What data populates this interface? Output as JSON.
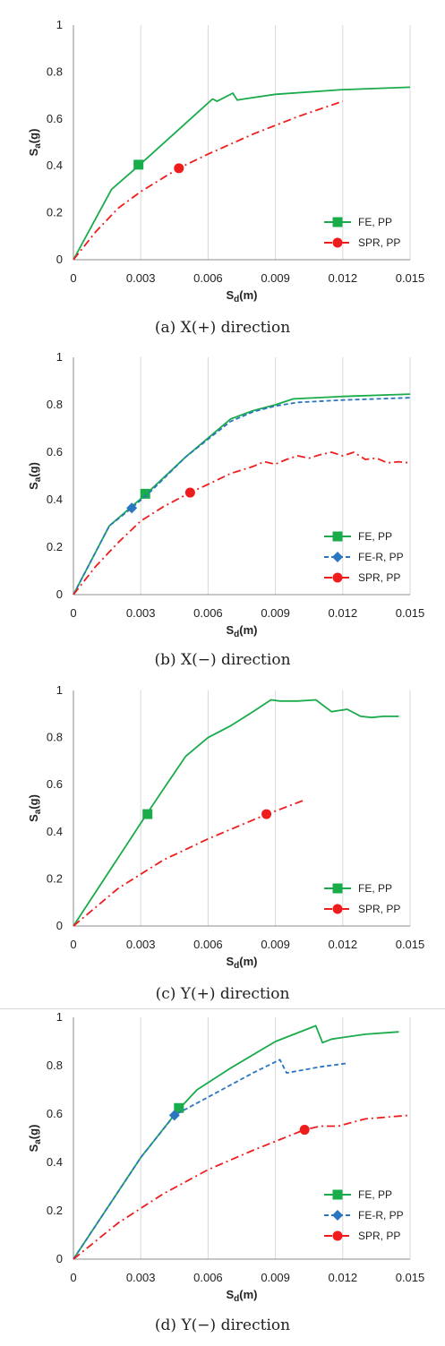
{
  "colors": {
    "fe": "#1aab4b",
    "fer": "#2a76c1",
    "spr": "#ee1c1c",
    "grid": "#d9d9d9",
    "axis": "#8c8c8c"
  },
  "chart_data": [
    {
      "type": "line",
      "caption": "(a) X(+) direction",
      "xlabel": "S_d(m)",
      "ylabel": "S_a(g)",
      "xlim": [
        0,
        0.015
      ],
      "ylim": [
        0,
        1
      ],
      "xticks": [
        "0",
        "0.003",
        "0.006",
        "0.009",
        "0.012",
        "0.015"
      ],
      "yticks": [
        "0",
        "0.2",
        "0.4",
        "0.6",
        "0.8",
        "1"
      ],
      "grid": "vertical",
      "legend": "bottom-right",
      "series": [
        {
          "name": "FE, PP",
          "style": "solid",
          "marker": "square",
          "color": "#1aab4b",
          "x": [
            0,
            0.0017,
            0.0029,
            0.0062,
            0.0064,
            0.0071,
            0.0073,
            0.0076,
            0.009,
            0.012,
            0.015
          ],
          "y": [
            0,
            0.3,
            0.4,
            0.685,
            0.675,
            0.71,
            0.68,
            0.685,
            0.705,
            0.725,
            0.735
          ],
          "point": {
            "x": 0.0029,
            "y": 0.405
          }
        },
        {
          "name": "SPR, PP",
          "style": "dashdot",
          "marker": "circle",
          "color": "#ee1c1c",
          "x": [
            0,
            0.001,
            0.002,
            0.003,
            0.0047,
            0.006,
            0.008,
            0.01,
            0.012
          ],
          "y": [
            0,
            0.12,
            0.22,
            0.29,
            0.39,
            0.45,
            0.535,
            0.61,
            0.675
          ],
          "point": {
            "x": 0.0047,
            "y": 0.39
          }
        }
      ]
    },
    {
      "type": "line",
      "caption": "(b) X(−) direction",
      "xlabel": "S_d(m)",
      "ylabel": "S_a(g)",
      "xlim": [
        0,
        0.015
      ],
      "ylim": [
        0,
        1
      ],
      "xticks": [
        "0",
        "0.003",
        "0.006",
        "0.009",
        "0.012",
        "0.015"
      ],
      "yticks": [
        "0",
        "0.2",
        "0.4",
        "0.6",
        "0.8",
        "1"
      ],
      "grid": "vertical",
      "legend": "bottom-right",
      "series": [
        {
          "name": "FE, PP",
          "style": "solid",
          "marker": "square",
          "color": "#1aab4b",
          "x": [
            0,
            0.0016,
            0.0032,
            0.005,
            0.007,
            0.008,
            0.009,
            0.0098,
            0.012,
            0.015
          ],
          "y": [
            0,
            0.29,
            0.42,
            0.58,
            0.74,
            0.775,
            0.8,
            0.825,
            0.835,
            0.845
          ],
          "point": {
            "x": 0.0032,
            "y": 0.425
          }
        },
        {
          "name": "FE-R, PP",
          "style": "dashed",
          "marker": "diamond",
          "color": "#2a76c1",
          "x": [
            0,
            0.0016,
            0.0026,
            0.0035,
            0.005,
            0.007,
            0.008,
            0.009,
            0.01,
            0.012,
            0.015
          ],
          "y": [
            0,
            0.29,
            0.365,
            0.44,
            0.58,
            0.73,
            0.77,
            0.795,
            0.81,
            0.82,
            0.83
          ],
          "point": {
            "x": 0.0026,
            "y": 0.365
          }
        },
        {
          "name": "SPR, PP",
          "style": "dashdot",
          "marker": "circle",
          "color": "#ee1c1c",
          "x": [
            0,
            0.001,
            0.002,
            0.003,
            0.004,
            0.0052,
            0.006,
            0.007,
            0.008,
            0.0085,
            0.009,
            0.0095,
            0.01,
            0.0105,
            0.011,
            0.0115,
            0.012,
            0.0125,
            0.013,
            0.0135,
            0.014,
            0.0145,
            0.015
          ],
          "y": [
            0,
            0.12,
            0.22,
            0.31,
            0.37,
            0.43,
            0.465,
            0.51,
            0.54,
            0.56,
            0.55,
            0.57,
            0.585,
            0.575,
            0.59,
            0.6,
            0.585,
            0.6,
            0.57,
            0.575,
            0.555,
            0.56,
            0.555
          ],
          "point": {
            "x": 0.0052,
            "y": 0.43
          }
        }
      ]
    },
    {
      "type": "line",
      "caption": "(c) Y(+) direction",
      "xlabel": "S_d(m)",
      "ylabel": "S_a(g)",
      "xlim": [
        0,
        0.015
      ],
      "ylim": [
        0,
        1
      ],
      "xticks": [
        "0",
        "0.003",
        "0.006",
        "0.009",
        "0.012",
        "0.015"
      ],
      "yticks": [
        "0",
        "0.2",
        "0.4",
        "0.6",
        "0.8",
        "1"
      ],
      "grid": "vertical",
      "legend": "bottom-right",
      "series": [
        {
          "name": "FE, PP",
          "style": "solid",
          "marker": "square",
          "color": "#1aab4b",
          "x": [
            0,
            0.0033,
            0.004,
            0.005,
            0.006,
            0.007,
            0.008,
            0.0088,
            0.0092,
            0.01,
            0.0108,
            0.0115,
            0.0122,
            0.0128,
            0.0133,
            0.0138,
            0.0145
          ],
          "y": [
            0,
            0.48,
            0.58,
            0.72,
            0.8,
            0.85,
            0.91,
            0.96,
            0.955,
            0.955,
            0.96,
            0.91,
            0.92,
            0.89,
            0.885,
            0.89,
            0.89
          ],
          "point": {
            "x": 0.0033,
            "y": 0.475
          }
        },
        {
          "name": "SPR, PP",
          "style": "dashdot",
          "marker": "circle",
          "color": "#ee1c1c",
          "x": [
            0,
            0.002,
            0.004,
            0.006,
            0.0085,
            0.0103
          ],
          "y": [
            0,
            0.16,
            0.28,
            0.37,
            0.47,
            0.535
          ],
          "point": {
            "x": 0.0086,
            "y": 0.475
          }
        }
      ]
    },
    {
      "type": "line",
      "caption": "(d) Y(−) direction",
      "xlabel": "S_d(m)",
      "ylabel": "S_a(g)",
      "xlim": [
        0,
        0.015
      ],
      "ylim": [
        0,
        1
      ],
      "xticks": [
        "0",
        "0.003",
        "0.006",
        "0.009",
        "0.012",
        "0.015"
      ],
      "yticks": [
        "0",
        "0.2",
        "0.4",
        "0.6",
        "0.8",
        "1"
      ],
      "grid": "vertical",
      "legend": "bottom-right",
      "series": [
        {
          "name": "FE, PP",
          "style": "solid",
          "marker": "square",
          "color": "#1aab4b",
          "x": [
            0,
            0.003,
            0.0047,
            0.0055,
            0.007,
            0.009,
            0.0108,
            0.0111,
            0.0115,
            0.013,
            0.0145
          ],
          "y": [
            0,
            0.42,
            0.62,
            0.7,
            0.79,
            0.9,
            0.965,
            0.895,
            0.91,
            0.93,
            0.94
          ],
          "point": {
            "x": 0.0047,
            "y": 0.625
          }
        },
        {
          "name": "FE-R, PP",
          "style": "dashed",
          "marker": "diamond",
          "color": "#2a76c1",
          "x": [
            0,
            0.003,
            0.0045,
            0.006,
            0.008,
            0.0092,
            0.0095,
            0.011,
            0.0122
          ],
          "y": [
            0,
            0.42,
            0.595,
            0.67,
            0.77,
            0.825,
            0.77,
            0.795,
            0.81
          ],
          "point": {
            "x": 0.0045,
            "y": 0.595
          }
        },
        {
          "name": "SPR, PP",
          "style": "dashdot",
          "marker": "circle",
          "color": "#ee1c1c",
          "x": [
            0,
            0.002,
            0.004,
            0.006,
            0.008,
            0.0103,
            0.011,
            0.0118,
            0.013,
            0.015
          ],
          "y": [
            0,
            0.15,
            0.27,
            0.37,
            0.45,
            0.535,
            0.55,
            0.55,
            0.58,
            0.595
          ],
          "point": {
            "x": 0.0103,
            "y": 0.535
          }
        }
      ]
    }
  ]
}
